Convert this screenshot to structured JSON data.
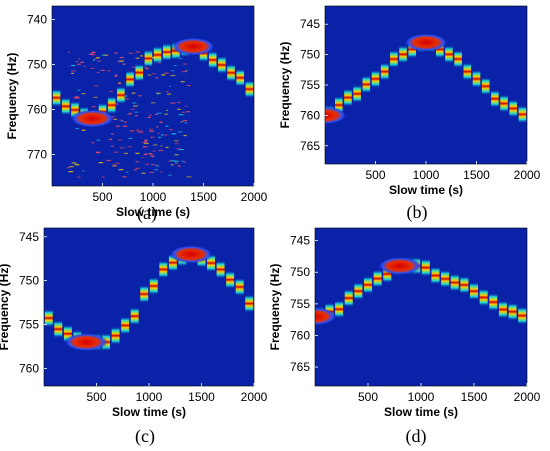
{
  "colors": {
    "background": "#0a22a8",
    "track_core": "#d40000",
    "track_mid": "#f5d000",
    "track_edge": "#18d8d8",
    "speckle": "#ff5060"
  },
  "chart_data": [
    {
      "panel": "(a)",
      "type": "heatmap",
      "xlabel": "Slow time (s)",
      "ylabel": "Frequency (Hz)",
      "xlim": [
        0,
        2000
      ],
      "ylim": [
        737,
        777
      ],
      "xticks": [
        500,
        1000,
        1500,
        2000
      ],
      "yticks": [
        740,
        750,
        760,
        770
      ],
      "track": {
        "x": [
          0,
          200,
          400,
          600,
          800,
          1000,
          1200,
          1400,
          1600,
          1800,
          2000
        ],
        "y": [
          757,
          760,
          762,
          759,
          753,
          748,
          747,
          746,
          749,
          752,
          756
        ]
      },
      "noise": true
    },
    {
      "panel": "(b)",
      "type": "heatmap",
      "xlabel": "Slow time (s)",
      "ylabel": "Frequency (Hz)",
      "xlim": [
        0,
        2000
      ],
      "ylim": [
        742,
        768
      ],
      "xticks": [
        500,
        1000,
        1500,
        2000
      ],
      "yticks": [
        745,
        750,
        755,
        760,
        765
      ],
      "track": {
        "x": [
          0,
          250,
          500,
          750,
          1000,
          1250,
          1500,
          1750,
          2000
        ],
        "y": [
          760,
          757,
          754,
          750,
          748,
          750,
          754,
          758,
          760
        ]
      },
      "noise": false
    },
    {
      "panel": "(c)",
      "type": "heatmap",
      "xlabel": "Slow time (s)",
      "ylabel": "Frequency (Hz)",
      "xlim": [
        0,
        2000
      ],
      "ylim": [
        744,
        762
      ],
      "xticks": [
        500,
        1000,
        1500,
        2000
      ],
      "yticks": [
        745,
        750,
        755,
        760
      ],
      "track": {
        "x": [
          0,
          200,
          400,
          600,
          800,
          1000,
          1200,
          1400,
          1600,
          1800,
          2000
        ],
        "y": [
          754,
          756,
          757,
          757,
          755,
          751,
          748,
          747,
          748,
          750,
          753
        ]
      },
      "noise": false
    },
    {
      "panel": "(d)",
      "type": "heatmap",
      "xlabel": "Slow time (s)",
      "ylabel": "Frequency (Hz)",
      "xlim": [
        0,
        2000
      ],
      "ylim": [
        743,
        768
      ],
      "xticks": [
        500,
        1000,
        1500,
        2000
      ],
      "yticks": [
        745,
        750,
        755,
        760,
        765
      ],
      "track": {
        "x": [
          0,
          200,
          400,
          600,
          800,
          1000,
          1200,
          1400,
          1600,
          1800,
          2000
        ],
        "y": [
          757,
          756,
          753,
          751,
          749,
          749,
          751,
          752,
          754,
          756,
          757
        ]
      },
      "noise": false
    }
  ]
}
